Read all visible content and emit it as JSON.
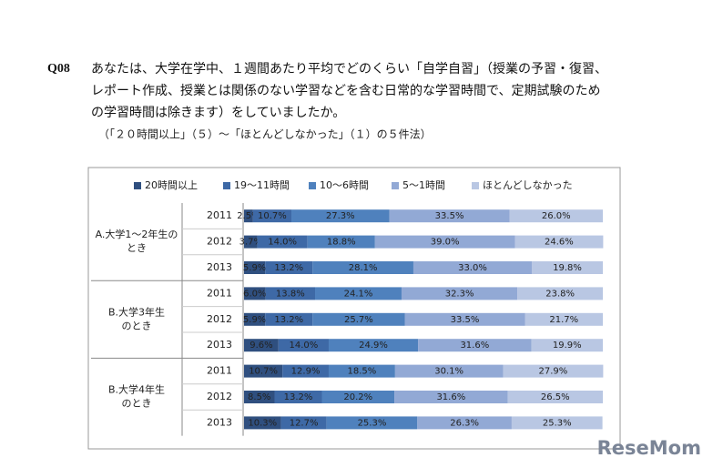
{
  "question": {
    "number": "Q08",
    "lines": [
      "あなたは、大学在学中、１週間あたり平均でどのくらい「自学自習」（授業の予習・復習、",
      "レポート作成、授業とは関係のない学習などを含む日常的な学習時間で、定期試験のため",
      "の学習時間は除きます）をしていましたか。"
    ],
    "note": "（「２０時間以上」（５）～「ほとんどしなかった」（１）の５件法）"
  },
  "watermark": "ReseMom",
  "chart_data": {
    "type": "stacked-bar-horizontal",
    "xlim": [
      0,
      100
    ],
    "groups": [
      [
        "A.大学1～2年生の",
        "とき"
      ],
      [
        "B.大学3年生",
        "のとき"
      ],
      [
        "B.大学4年生",
        "のとき"
      ]
    ],
    "categories": [
      "2011",
      "2012",
      "2013",
      "2011",
      "2012",
      "2013",
      "2011",
      "2012",
      "2013"
    ],
    "series": [
      {
        "name": "20時間以上",
        "color": "#2f4f7f",
        "values": [
          2.5,
          3.7,
          5.9,
          6.0,
          5.9,
          9.6,
          10.7,
          8.5,
          10.3
        ],
        "value_labels": [
          "2.5%",
          "3.7%",
          "5.9%",
          "6.0%",
          "5.9%",
          "9.6%",
          "10.7%",
          "8.5%",
          "10.3%"
        ]
      },
      {
        "name": "19～11時間",
        "color": "#3e69a6",
        "values": [
          10.7,
          14.0,
          13.2,
          13.8,
          13.2,
          14.0,
          12.9,
          13.2,
          12.7
        ],
        "value_labels": [
          "10.7%",
          "14.0%",
          "13.2%",
          "13.8%",
          "13.2%",
          "14.0%",
          "12.9%",
          "13.2%",
          "12.7%"
        ]
      },
      {
        "name": "10～6時間",
        "color": "#4f81bd",
        "values": [
          27.3,
          18.8,
          28.1,
          24.1,
          25.7,
          24.9,
          18.5,
          20.2,
          25.3
        ],
        "value_labels": [
          "27.3%",
          "18.8%",
          "28.1%",
          "24.1%",
          "25.7%",
          "24.9%",
          "18.5%",
          "20.2%",
          "25.3%"
        ]
      },
      {
        "name": "5～1時間",
        "color": "#92a9d5",
        "values": [
          33.5,
          39.0,
          33.0,
          32.3,
          33.5,
          31.6,
          30.1,
          31.6,
          26.3
        ],
        "value_labels": [
          "33.5%",
          "39.0%",
          "33.0%",
          "32.3%",
          "33.5%",
          "31.6%",
          "30.1%",
          "31.6%",
          "26.3%"
        ]
      },
      {
        "name": "ほとんどしなかった",
        "color": "#b9c7e3",
        "values": [
          26.0,
          24.6,
          19.8,
          23.8,
          21.7,
          19.9,
          27.9,
          26.5,
          25.3
        ],
        "value_labels": [
          "26.0%",
          "24.6%",
          "19.8%",
          "23.8%",
          "21.7%",
          "19.9%",
          "27.9%",
          "26.5%",
          "25.3%"
        ]
      }
    ]
  }
}
